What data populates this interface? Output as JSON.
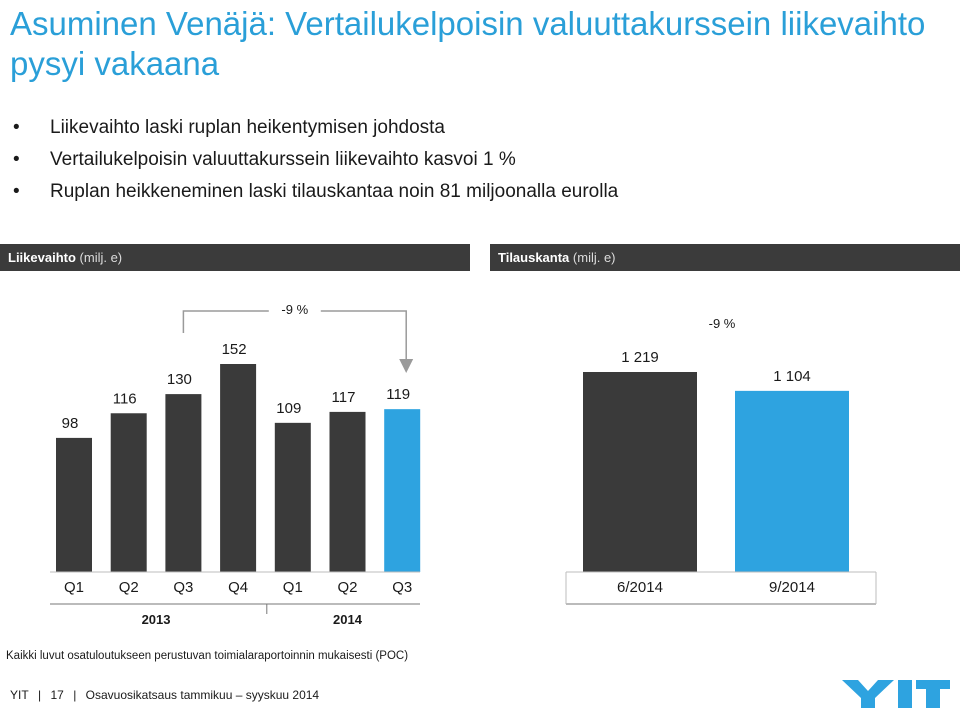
{
  "title": "Asuminen Venäjä: Vertailukelpoisin valuuttakurssein liikevaihto pysyi vakaana",
  "bullets": [
    "Liikevaihto laski ruplan heikentymisen johdosta",
    "Vertailukelpoisin valuuttakurssein liikevaihto kasvoi 1 %",
    "Ruplan heikkeneminen laski tilauskantaa noin 81 miljoonalla eurolla"
  ],
  "bullet_char": "•",
  "panels": {
    "left": {
      "title": "Liikevaihto",
      "unit": " (milj. e)"
    },
    "right": {
      "title": "Tilauskanta",
      "unit": " (milj. e)"
    }
  },
  "colors": {
    "title": "#2a9fd8",
    "bar_dark": "#3a3a3a",
    "bar_highlight": "#2ea3e0",
    "header_bg": "#3b3b3b"
  },
  "chart_data": [
    {
      "type": "bar",
      "title": "Liikevaihto (milj. e)",
      "categories": [
        "Q1",
        "Q2",
        "Q3",
        "Q4",
        "Q1",
        "Q2",
        "Q3"
      ],
      "groups": [
        {
          "label": "2013",
          "categories": [
            "Q1",
            "Q2",
            "Q3",
            "Q4"
          ]
        },
        {
          "label": "2014",
          "categories": [
            "Q1",
            "Q2",
            "Q3"
          ]
        }
      ],
      "values": [
        98,
        116,
        130,
        152,
        109,
        117,
        119
      ],
      "value_labels": [
        "98",
        "116",
        "130",
        "152",
        "109",
        "117",
        "119"
      ],
      "highlight_index": 6,
      "annotation": {
        "text": "-9 %",
        "from_index": 2,
        "to_index": 6
      }
    },
    {
      "type": "bar",
      "title": "Tilauskanta (milj. e)",
      "categories": [
        "6/2014",
        "9/2014"
      ],
      "values": [
        1219,
        1104
      ],
      "value_labels": [
        "1 219",
        "1 104"
      ],
      "highlight_index": 1,
      "annotation": {
        "text": "-9 %"
      }
    }
  ],
  "footnote": "Kaikki luvut osatuloutukseen perustuvan toimialaraportoinnin mukaisesti (POC)",
  "footer": {
    "company": "YIT",
    "page": "17",
    "doc": "Osavuosikatsaus tammikuu – syyskuu 2014",
    "separator": "|"
  },
  "logo_text": "YIT"
}
